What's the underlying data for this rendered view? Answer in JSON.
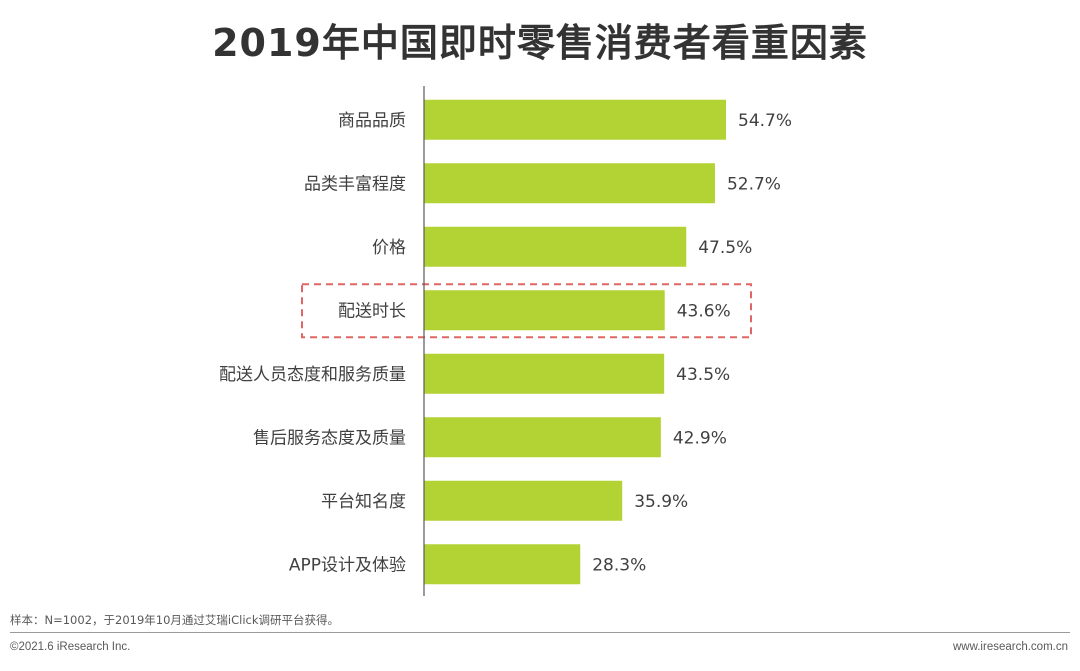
{
  "title": "2019年中国即时零售消费者看重因素",
  "colors": {
    "bar": "#b3d334",
    "axis": "#595959",
    "highlight": "#e06666"
  },
  "chart_data": {
    "type": "bar",
    "orientation": "horizontal",
    "title": "2019年中国即时零售消费者看重因素",
    "categories": [
      "商品品质",
      "品类丰富程度",
      "价格",
      "配送时长",
      "配送人员态度和服务质量",
      "售后服务态度及质量",
      "平台知名度",
      "APP设计及体验"
    ],
    "values": [
      54.7,
      52.7,
      47.5,
      43.6,
      43.5,
      42.9,
      35.9,
      28.3
    ],
    "value_labels": [
      "54.7%",
      "52.7%",
      "47.5%",
      "43.6%",
      "43.5%",
      "42.9%",
      "35.9%",
      "28.3%"
    ],
    "unit": "%",
    "xlim": [
      0,
      60
    ],
    "highlighted_category": "配送时长",
    "grid": false
  },
  "footer": {
    "note": "样本：N=1002，于2019年10月通过艾瑞iClick调研平台获得。",
    "copyright": "©2021.6 iResearch Inc.",
    "website": "www.iresearch.com.cn"
  }
}
